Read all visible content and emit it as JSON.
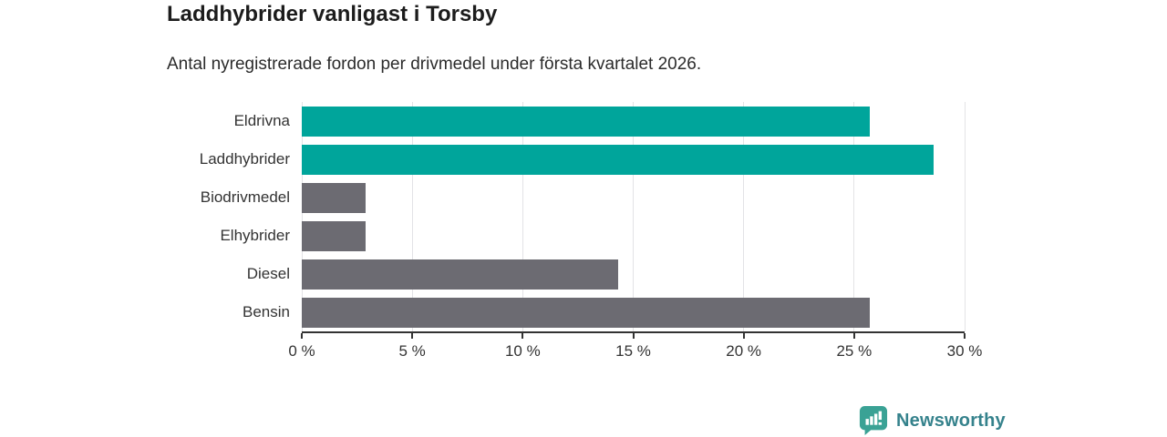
{
  "page": {
    "background": "#ffffff"
  },
  "header": {
    "title": "Laddhybrider vanligast i Torsby",
    "subtitle": "Antal nyregistrerade fordon per drivmedel under första kvartalet 2026."
  },
  "chart_data": {
    "type": "bar",
    "orientation": "horizontal",
    "title": "Laddhybrider vanligast i Torsby",
    "subtitle": "Antal nyregistrerade fordon per drivmedel under första kvartalet 2026.",
    "categories": [
      "Eldrivna",
      "Laddhybrider",
      "Biodrivmedel",
      "Elhybrider",
      "Diesel",
      "Bensin"
    ],
    "values": [
      25.7,
      28.6,
      2.9,
      2.9,
      14.3,
      25.7
    ],
    "unit": "%",
    "bar_colors": [
      "#00a59b",
      "#00a59b",
      "#6c6b72",
      "#6c6b72",
      "#6c6b72",
      "#6c6b72"
    ],
    "accent_color": "#00a59b",
    "neutral_color": "#6c6b72",
    "xlim": [
      0,
      30
    ],
    "x_ticks": [
      0,
      5,
      10,
      15,
      20,
      25,
      30
    ],
    "x_tick_labels": [
      "0 %",
      "5 %",
      "10 %",
      "15 %",
      "20 %",
      "25 %",
      "30 %"
    ],
    "grid": true,
    "gridline_color": "#e3e3e6",
    "axis_color": "#333333",
    "legend": "none",
    "data_labels": "none"
  },
  "footer": {
    "brand": "Newsworthy",
    "brand_color": "#35828c",
    "logo_icon": "bar-chart-speech-bubble-icon",
    "logo_color": "#3aa295"
  }
}
